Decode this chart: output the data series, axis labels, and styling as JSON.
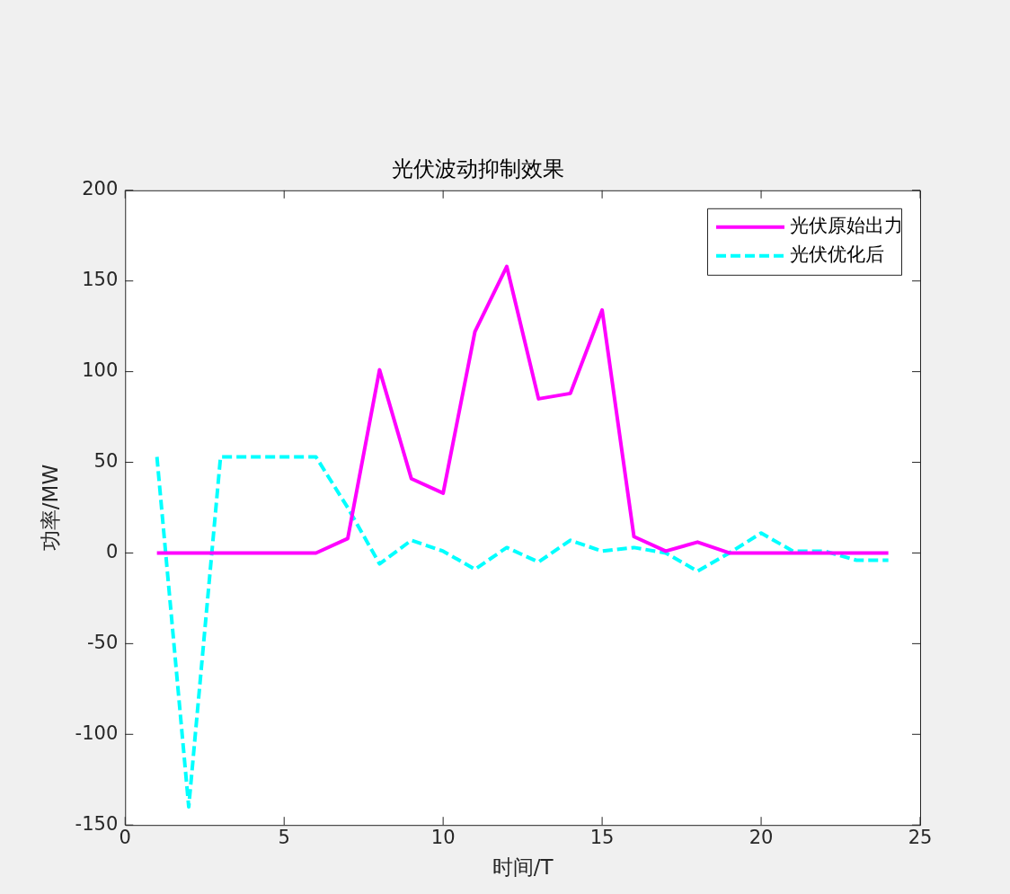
{
  "chart_data": {
    "type": "line",
    "title": "光伏波动抑制效果",
    "xlabel": "时间/T",
    "ylabel": "功率/MW",
    "x": [
      1,
      2,
      3,
      4,
      5,
      6,
      7,
      8,
      9,
      10,
      11,
      12,
      13,
      14,
      15,
      16,
      17,
      18,
      19,
      20,
      21,
      22,
      23,
      24
    ],
    "series": [
      {
        "name": "光伏原始出力",
        "color": "#ff00ff",
        "line_style": "solid",
        "values": [
          0,
          0,
          0,
          0,
          0,
          0,
          8,
          101,
          41,
          33,
          122,
          158,
          85,
          88,
          134,
          9,
          1,
          6,
          0,
          0,
          0,
          0,
          0,
          0
        ]
      },
      {
        "name": "光伏优化后",
        "color": "#00ffff",
        "line_style": "dashed",
        "values": [
          53,
          -140,
          53,
          53,
          53,
          53,
          25,
          -6,
          7,
          1,
          -9,
          3,
          -5,
          7,
          1,
          3,
          0,
          -10,
          0,
          11,
          1,
          1,
          -4,
          -4
        ]
      }
    ],
    "xlim": [
      0,
      25
    ],
    "xticks": [
      0,
      5,
      10,
      15,
      20,
      25
    ],
    "ylim": [
      -150,
      200
    ],
    "yticks": [
      -150,
      -100,
      -50,
      0,
      50,
      100,
      150,
      200
    ],
    "grid": false,
    "legend": "top right",
    "marker": "none"
  }
}
